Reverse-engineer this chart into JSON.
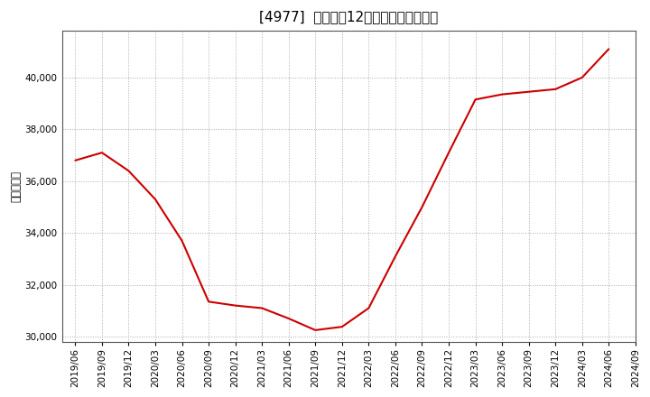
{
  "title": "[4977]  売上高の12か月移動合計の推移",
  "ylabel": "（百万円）",
  "line_color": "#cc0000",
  "background_color": "#ffffff",
  "plot_bg_color": "#ffffff",
  "grid_color": "#aaaaaa",
  "dates": [
    "2019/06",
    "2019/09",
    "2019/12",
    "2020/03",
    "2020/06",
    "2020/09",
    "2020/12",
    "2021/03",
    "2021/06",
    "2021/09",
    "2021/12",
    "2022/03",
    "2022/06",
    "2022/09",
    "2022/12",
    "2023/03",
    "2023/06",
    "2023/09",
    "2023/12",
    "2024/03",
    "2024/06"
  ],
  "values": [
    36800,
    37100,
    36400,
    35300,
    33700,
    31350,
    31200,
    31100,
    30700,
    30250,
    30380,
    31100,
    33100,
    35000,
    37100,
    39150,
    39350,
    39450,
    39550,
    40000,
    41100
  ],
  "x_all_labels": [
    "2019/06",
    "2019/09",
    "2019/12",
    "2020/03",
    "2020/06",
    "2020/09",
    "2020/12",
    "2021/03",
    "2021/06",
    "2021/09",
    "2021/12",
    "2022/03",
    "2022/06",
    "2022/09",
    "2022/12",
    "2023/03",
    "2023/06",
    "2023/09",
    "2023/12",
    "2024/03",
    "2024/06",
    "2024/09"
  ],
  "ylim": [
    29800,
    41800
  ],
  "yticks": [
    30000,
    32000,
    34000,
    36000,
    38000,
    40000
  ],
  "title_fontsize": 11,
  "tick_fontsize": 7.5,
  "ylabel_fontsize": 8.5
}
